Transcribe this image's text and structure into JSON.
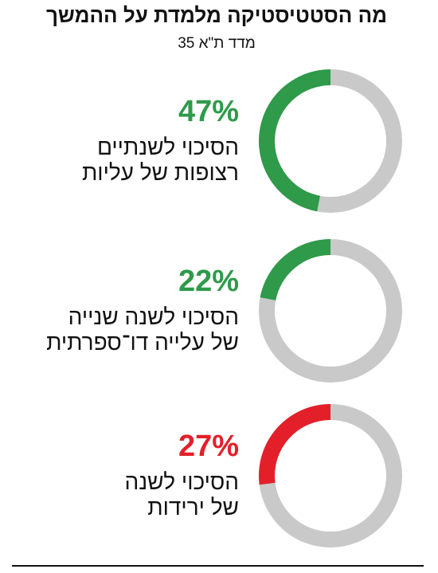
{
  "title": "מה הסטטיסטיקה מלמדת על ההמשך",
  "subtitle": "מדד ת\"א 35",
  "chart_data": [
    {
      "type": "donut",
      "label": [
        "הסיכוי לשנתיים",
        "רצופות של עליות"
      ],
      "values": [
        47
      ],
      "value_labels": [
        "47%"
      ],
      "color": "#2e9a4a",
      "track_color": "#c9c9c9",
      "ylim": [
        0,
        100
      ]
    },
    {
      "type": "donut",
      "label": [
        "הסיכוי לשנה שנייה",
        "של עלייה דו־ספרתית"
      ],
      "values": [
        22
      ],
      "value_labels": [
        "22%"
      ],
      "color": "#2e9a4a",
      "track_color": "#c9c9c9",
      "ylim": [
        0,
        100
      ]
    },
    {
      "type": "donut",
      "label": [
        "הסיכוי לשנה",
        "של ירידות"
      ],
      "values": [
        27
      ],
      "value_labels": [
        "27%"
      ],
      "color": "#e3202a",
      "track_color": "#c9c9c9",
      "ylim": [
        0,
        100
      ]
    }
  ]
}
